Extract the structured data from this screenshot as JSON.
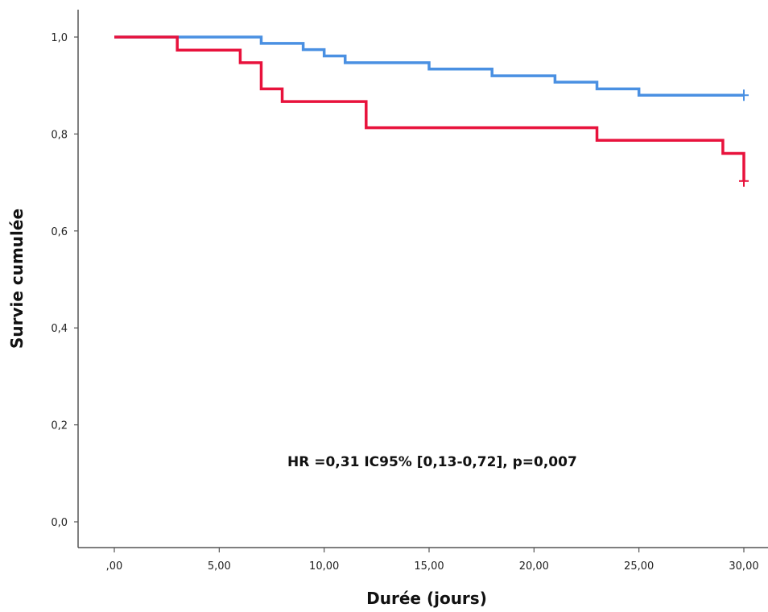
{
  "chart_data": {
    "type": "line",
    "title": "",
    "xlabel": "Durée (jours)",
    "ylabel": "Survie cumulée",
    "xlim": [
      0,
      30
    ],
    "ylim": [
      0,
      1
    ],
    "x_ticks": [
      0,
      5,
      10,
      15,
      20,
      25,
      30
    ],
    "x_tick_labels": [
      ",00",
      "5,00",
      "10,00",
      "15,00",
      "20,00",
      "25,00",
      "30,00"
    ],
    "y_ticks": [
      0,
      0.2,
      0.4,
      0.6,
      0.8,
      1.0
    ],
    "y_tick_labels": [
      "0,0",
      "0,2",
      "0,4",
      "0,6",
      "0,8",
      "1,0"
    ],
    "grid": false,
    "legend": "none",
    "annotation": "HR =0,31 IC95% [0,13-0,72], p=0,007",
    "series": [
      {
        "color": "#4a90e2",
        "step_x": [
          0,
          7,
          9,
          10,
          11,
          15,
          18,
          21,
          23,
          25,
          30
        ],
        "step_y": [
          1.0,
          0.987,
          0.974,
          0.961,
          0.947,
          0.934,
          0.92,
          0.907,
          0.893,
          0.88,
          0.88
        ],
        "censored": [
          {
            "x": 30,
            "y": 0.88
          }
        ]
      },
      {
        "color": "#e8123c",
        "step_x": [
          0,
          3,
          6,
          7,
          8,
          12,
          23,
          29,
          30
        ],
        "step_y": [
          1.0,
          0.973,
          0.947,
          0.893,
          0.867,
          0.813,
          0.787,
          0.76,
          0.703
        ],
        "censored": [
          {
            "x": 30,
            "y": 0.703
          }
        ]
      }
    ]
  }
}
